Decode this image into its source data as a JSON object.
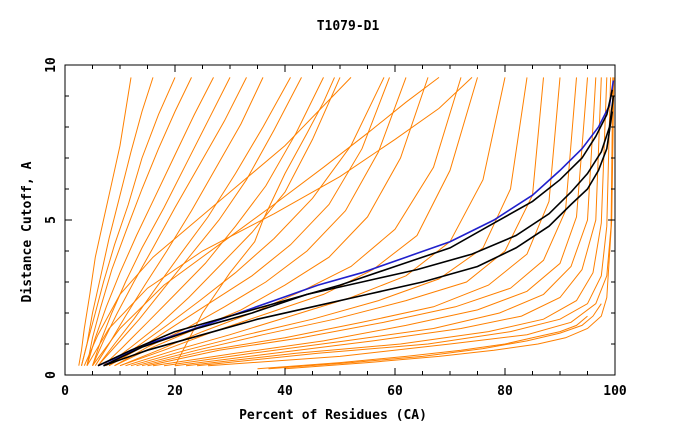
{
  "chart_data": {
    "type": "line",
    "title": "T1079-D1",
    "xlabel": "Percent of Residues (CA)",
    "ylabel": "Distance Cutoff, A",
    "xlim": [
      0,
      100
    ],
    "ylim": [
      0,
      10
    ],
    "x_ticks": [
      0,
      20,
      40,
      60,
      80,
      100
    ],
    "y_ticks": [
      0,
      5,
      10
    ],
    "grid": false,
    "legend": "none",
    "colors": {
      "models": "#ff8000",
      "highlight_blue": "#2020cc",
      "highlight_black": "#000000"
    },
    "series": [
      {
        "color": "#ff8000",
        "x": [
          2.5,
          3,
          3.5,
          4.5,
          5.5,
          7,
          8.5,
          10,
          11,
          12
        ],
        "y": [
          0.3,
          0.8,
          1.5,
          2.6,
          3.8,
          5.0,
          6.2,
          7.4,
          8.5,
          9.6
        ]
      },
      {
        "color": "#ff8000",
        "x": [
          3,
          4,
          5,
          6.5,
          8,
          10,
          12,
          14,
          16
        ],
        "y": [
          0.3,
          1.0,
          2.0,
          3.2,
          4.4,
          5.8,
          7.2,
          8.5,
          9.6
        ]
      },
      {
        "color": "#ff8000",
        "x": [
          3,
          4,
          5.5,
          7,
          9,
          11.5,
          14,
          17,
          20
        ],
        "y": [
          0.3,
          1.0,
          2.0,
          3.0,
          4.2,
          5.5,
          7.0,
          8.4,
          9.6
        ]
      },
      {
        "color": "#ff8000",
        "x": [
          4,
          5,
          6.5,
          8.5,
          11,
          14,
          17,
          20,
          23
        ],
        "y": [
          0.3,
          1.2,
          2.2,
          3.4,
          4.6,
          6.0,
          7.3,
          8.5,
          9.6
        ]
      },
      {
        "color": "#ff8000",
        "x": [
          4,
          5.5,
          7.5,
          10,
          13,
          16.5,
          20,
          23.5,
          27
        ],
        "y": [
          0.3,
          1.2,
          2.2,
          3.3,
          4.5,
          5.8,
          7.1,
          8.4,
          9.6
        ]
      },
      {
        "color": "#ff8000",
        "x": [
          5,
          6.5,
          8.5,
          11,
          14,
          18,
          22,
          26,
          30
        ],
        "y": [
          0.3,
          1.1,
          2.0,
          3.0,
          4.1,
          5.4,
          6.8,
          8.2,
          9.6
        ]
      },
      {
        "color": "#ff8000",
        "x": [
          5,
          7,
          9.5,
          12.5,
          16,
          20,
          24.5,
          29,
          33
        ],
        "y": [
          0.3,
          1.1,
          2.0,
          3.0,
          4.1,
          5.4,
          6.8,
          8.2,
          9.6
        ]
      },
      {
        "color": "#ff8000",
        "x": [
          5.5,
          8,
          11,
          14.5,
          18.5,
          23,
          27.5,
          32,
          36
        ],
        "y": [
          0.3,
          1.0,
          1.9,
          2.9,
          4.0,
          5.3,
          6.7,
          8.1,
          9.6
        ]
      },
      {
        "color": "#ff8000",
        "x": [
          6,
          9,
          12.5,
          16.5,
          21,
          26,
          31,
          36,
          41
        ],
        "y": [
          0.3,
          1.0,
          1.8,
          2.8,
          3.9,
          5.1,
          6.5,
          8.0,
          9.6
        ]
      },
      {
        "color": "#ff8000",
        "x": [
          6,
          9.5,
          13.5,
          18,
          23,
          28,
          33,
          38,
          43
        ],
        "y": [
          0.3,
          1.0,
          1.8,
          2.8,
          3.9,
          5.0,
          6.3,
          7.9,
          9.6
        ]
      },
      {
        "color": "#ff8000",
        "x": [
          7,
          10.5,
          15,
          20,
          25.5,
          31,
          36.5,
          42,
          47
        ],
        "y": [
          0.3,
          0.9,
          1.7,
          2.6,
          3.6,
          4.8,
          6.1,
          7.8,
          9.6
        ]
      },
      {
        "color": "#ff8000",
        "x": [
          7.5,
          12,
          17,
          22.5,
          28,
          34,
          40,
          45,
          50
        ],
        "y": [
          0.3,
          0.9,
          1.6,
          2.5,
          3.5,
          4.6,
          5.9,
          7.6,
          9.6
        ]
      },
      {
        "color": "#ff8000",
        "x": [
          8,
          13,
          18.5,
          24.5,
          31,
          38,
          45,
          52,
          58
        ],
        "y": [
          0.3,
          0.9,
          1.6,
          2.4,
          3.3,
          4.4,
          5.7,
          7.4,
          9.6
        ]
      },
      {
        "color": "#ff8000",
        "x": [
          8,
          14,
          20,
          27,
          34,
          41,
          48,
          54,
          59
        ],
        "y": [
          0.3,
          0.9,
          1.6,
          2.4,
          3.2,
          4.2,
          5.5,
          7.3,
          9.6
        ]
      },
      {
        "color": "#ff8000",
        "x": [
          9,
          15,
          22,
          29,
          36.5,
          44,
          51,
          57,
          62
        ],
        "y": [
          0.3,
          0.9,
          1.5,
          2.2,
          3.0,
          4.0,
          5.3,
          7.2,
          9.6
        ]
      },
      {
        "color": "#ff8000",
        "x": [
          9,
          16,
          24,
          32,
          40,
          48,
          55,
          61,
          66
        ],
        "y": [
          0.3,
          0.9,
          1.5,
          2.1,
          2.9,
          3.8,
          5.1,
          7.0,
          9.6
        ]
      },
      {
        "color": "#ff8000",
        "x": [
          10,
          17,
          25,
          34,
          43,
          52,
          60,
          67,
          72
        ],
        "y": [
          0.3,
          0.8,
          1.4,
          2.0,
          2.7,
          3.5,
          4.7,
          6.7,
          9.6
        ]
      },
      {
        "color": "#ff8000",
        "x": [
          10,
          18,
          27,
          37,
          47,
          56,
          64,
          70,
          75
        ],
        "y": [
          0.3,
          0.8,
          1.4,
          2.0,
          2.6,
          3.4,
          4.5,
          6.6,
          9.6
        ]
      },
      {
        "color": "#ff8000",
        "x": [
          11,
          20,
          30,
          41,
          52,
          62,
          70,
          76,
          80
        ],
        "y": [
          0.3,
          0.8,
          1.3,
          1.9,
          2.5,
          3.2,
          4.3,
          6.3,
          9.6
        ]
      },
      {
        "color": "#ff8000",
        "x": [
          12,
          22,
          33,
          45,
          57,
          68,
          76,
          81,
          84
        ],
        "y": [
          0.3,
          0.8,
          1.3,
          1.8,
          2.4,
          3.1,
          4.1,
          6.0,
          9.6
        ]
      },
      {
        "color": "#ff8000",
        "x": [
          13,
          24,
          36,
          49,
          62,
          73,
          80,
          85,
          87
        ],
        "y": [
          0.3,
          0.8,
          1.3,
          1.8,
          2.4,
          3.0,
          4.0,
          5.8,
          9.6
        ]
      },
      {
        "color": "#ff8000",
        "x": [
          14,
          26,
          40,
          54,
          67,
          77,
          84,
          88,
          90
        ],
        "y": [
          0.3,
          0.8,
          1.2,
          1.7,
          2.2,
          2.9,
          3.9,
          5.6,
          9.6
        ]
      },
      {
        "color": "#ff8000",
        "x": [
          15,
          28,
          43,
          58,
          71,
          81,
          87,
          91,
          93
        ],
        "y": [
          0.3,
          0.8,
          1.2,
          1.7,
          2.2,
          2.8,
          3.7,
          5.3,
          9.6
        ]
      },
      {
        "color": "#ff8000",
        "x": [
          16,
          31,
          47,
          62,
          75,
          84,
          90,
          93,
          95
        ],
        "y": [
          0.3,
          0.7,
          1.1,
          1.6,
          2.1,
          2.7,
          3.6,
          5.1,
          9.6
        ]
      },
      {
        "color": "#ff8000",
        "x": [
          18,
          34,
          51,
          67,
          79,
          87,
          92,
          95,
          96.5
        ],
        "y": [
          0.3,
          0.7,
          1.1,
          1.5,
          2.0,
          2.6,
          3.5,
          5.0,
          9.6
        ]
      },
      {
        "color": "#ff8000",
        "x": [
          20,
          38,
          56,
          72,
          83,
          90,
          94,
          96.5,
          97.5
        ],
        "y": [
          0.3,
          0.7,
          1.1,
          1.5,
          1.9,
          2.5,
          3.4,
          5.0,
          9.6
        ]
      },
      {
        "color": "#ff8000",
        "x": [
          22,
          42,
          61,
          77,
          87,
          93,
          96,
          97.5,
          98.5
        ],
        "y": [
          0.3,
          0.7,
          1.0,
          1.4,
          1.8,
          2.4,
          3.3,
          4.9,
          9.6
        ]
      },
      {
        "color": "#ff8000",
        "x": [
          24,
          46,
          66,
          81,
          90,
          95,
          97.5,
          98.5,
          99.2
        ],
        "y": [
          0.3,
          0.7,
          1.0,
          1.4,
          1.8,
          2.3,
          3.2,
          4.8,
          9.6
        ]
      },
      {
        "color": "#ff8000",
        "x": [
          26,
          50,
          70,
          84,
          92,
          96.5,
          98.5,
          99.3,
          99.6
        ],
        "y": [
          0.3,
          0.6,
          1.0,
          1.3,
          1.7,
          2.3,
          3.2,
          4.8,
          9.6
        ]
      },
      {
        "color": "#ff8000",
        "x": [
          4,
          8,
          15,
          25,
          38,
          50,
          60,
          68,
          74
        ],
        "y": [
          0.3,
          1.5,
          2.8,
          4.0,
          5.2,
          6.4,
          7.6,
          8.6,
          9.6
        ]
      },
      {
        "color": "#ff8000",
        "x": [
          5,
          10,
          18,
          28,
          38,
          47,
          55,
          62,
          68
        ],
        "y": [
          0.3,
          1.5,
          2.9,
          4.2,
          5.5,
          6.7,
          7.8,
          8.8,
          9.6
        ]
      },
      {
        "color": "#ff8000",
        "x": [
          3.5,
          6,
          10,
          16,
          24,
          32,
          40,
          46,
          52
        ],
        "y": [
          0.3,
          1.3,
          2.6,
          3.8,
          5.0,
          6.2,
          7.4,
          8.5,
          9.6
        ]
      },
      {
        "color": "#ff8000",
        "x": [
          20,
          25,
          30,
          34.5,
          36,
          40,
          44,
          47,
          49
        ],
        "y": [
          0.3,
          2.0,
          3.3,
          4.3,
          5.0,
          6.5,
          7.8,
          8.8,
          9.6
        ]
      },
      {
        "color": "#ff8000",
        "x": [
          35,
          50,
          62,
          72,
          80,
          85,
          90,
          93,
          95
        ],
        "y": [
          0.2,
          0.4,
          0.6,
          0.8,
          1.0,
          1.2,
          1.4,
          1.6,
          1.9
        ]
      },
      {
        "color": "#ff8000",
        "x": [
          37,
          52,
          65,
          76,
          84,
          90,
          94,
          96,
          97.5
        ],
        "y": [
          0.2,
          0.4,
          0.6,
          0.85,
          1.1,
          1.35,
          1.6,
          1.9,
          2.3
        ]
      },
      {
        "color": "#ff8000",
        "x": [
          40,
          55,
          68,
          78,
          86,
          91,
          95,
          97.5,
          98.5,
          99.4,
          99.8
        ],
        "y": [
          0.2,
          0.4,
          0.6,
          0.8,
          1.0,
          1.2,
          1.5,
          1.9,
          2.5,
          5.0,
          9.6
        ]
      },
      {
        "color": "#2020cc",
        "x": [
          6,
          10,
          15,
          22,
          30,
          38,
          46,
          54,
          62,
          70,
          78,
          85,
          90,
          94,
          97,
          99,
          99.7
        ],
        "y": [
          0.3,
          0.6,
          1.0,
          1.4,
          1.9,
          2.4,
          2.9,
          3.3,
          3.8,
          4.3,
          5.0,
          5.8,
          6.6,
          7.3,
          8.0,
          8.7,
          9.5
        ]
      },
      {
        "color": "#000000",
        "x": [
          6,
          12,
          20,
          30,
          40,
          50,
          60,
          70,
          78,
          85,
          90,
          94,
          96.5,
          98.5,
          99.5
        ],
        "y": [
          0.3,
          0.8,
          1.4,
          1.9,
          2.4,
          2.9,
          3.5,
          4.1,
          4.9,
          5.6,
          6.3,
          7.0,
          7.7,
          8.4,
          9.2
        ]
      },
      {
        "color": "#000000",
        "x": [
          7,
          14,
          24,
          34,
          44,
          54,
          64,
          74,
          82,
          88,
          92,
          95,
          97.5,
          99,
          99.7
        ],
        "y": [
          0.3,
          0.9,
          1.5,
          2.0,
          2.6,
          3.0,
          3.4,
          3.9,
          4.5,
          5.2,
          5.9,
          6.5,
          7.2,
          8.0,
          9.0
        ]
      },
      {
        "color": "#000000",
        "x": [
          7,
          15,
          25,
          35,
          45,
          55,
          65,
          75,
          82,
          88,
          92,
          95,
          97,
          98.5,
          99.5
        ],
        "y": [
          0.3,
          0.8,
          1.3,
          1.8,
          2.2,
          2.6,
          3.0,
          3.5,
          4.1,
          4.8,
          5.5,
          6.0,
          6.6,
          7.3,
          8.5
        ]
      }
    ]
  }
}
